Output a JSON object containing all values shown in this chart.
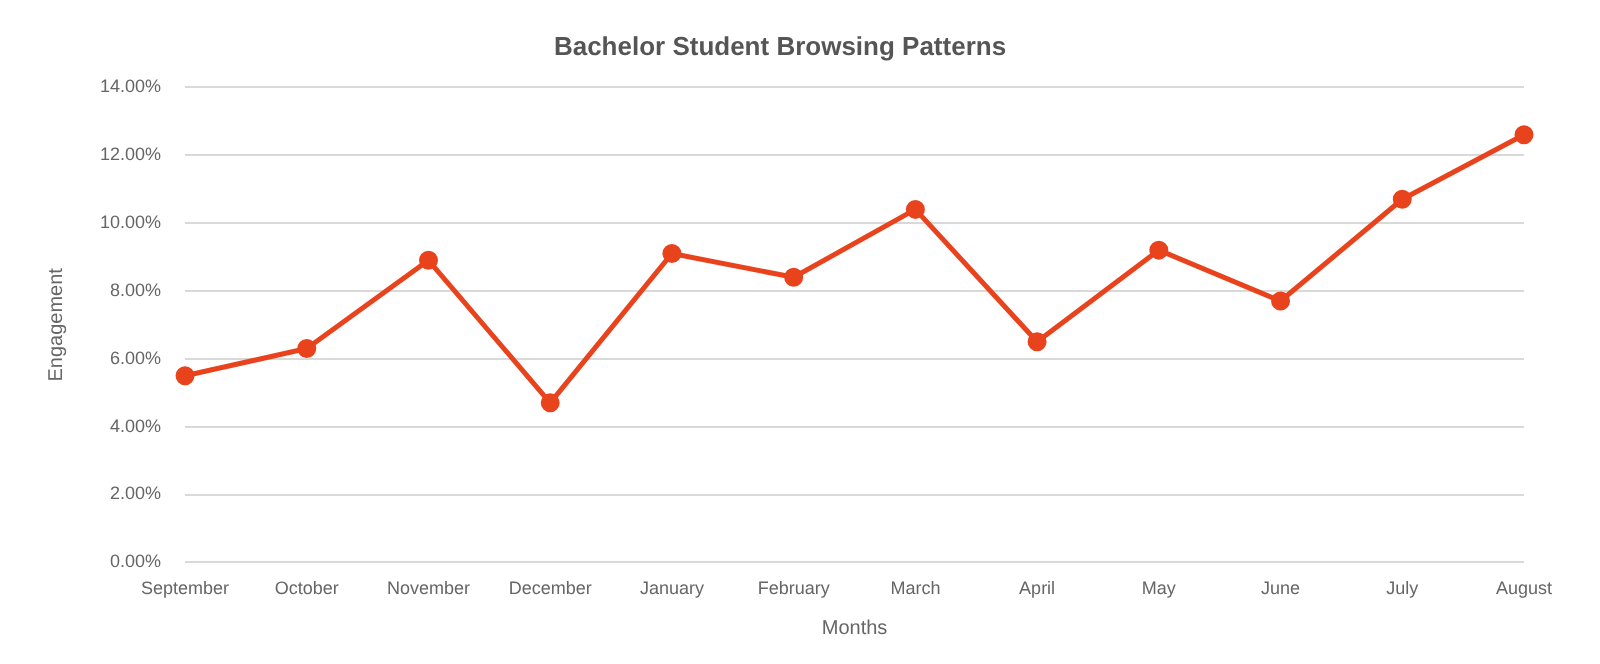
{
  "chart_data": {
    "type": "line",
    "title": "Bachelor Student Browsing Patterns",
    "xlabel": "Months",
    "ylabel": "Engagement",
    "categories": [
      "September",
      "October",
      "November",
      "December",
      "January",
      "February",
      "March",
      "April",
      "May",
      "June",
      "July",
      "August"
    ],
    "series": [
      {
        "color": "#e8431c",
        "values": [
          5.5,
          6.3,
          8.9,
          4.7,
          9.1,
          8.4,
          10.4,
          6.5,
          9.2,
          7.7,
          10.7,
          12.6
        ]
      }
    ],
    "ylim": [
      0,
      14
    ],
    "yticks": [
      {
        "value": 0,
        "label": "0.00%"
      },
      {
        "value": 2,
        "label": "2.00%"
      },
      {
        "value": 4,
        "label": "4.00%"
      },
      {
        "value": 6,
        "label": "6.00%"
      },
      {
        "value": 8,
        "label": "8.00%"
      },
      {
        "value": 10,
        "label": "10.00%"
      },
      {
        "value": 12,
        "label": "12.00%"
      },
      {
        "value": 14,
        "label": "14.00%"
      }
    ],
    "grid": "y",
    "legend": false,
    "marker": "circle",
    "line_style": "solid"
  }
}
